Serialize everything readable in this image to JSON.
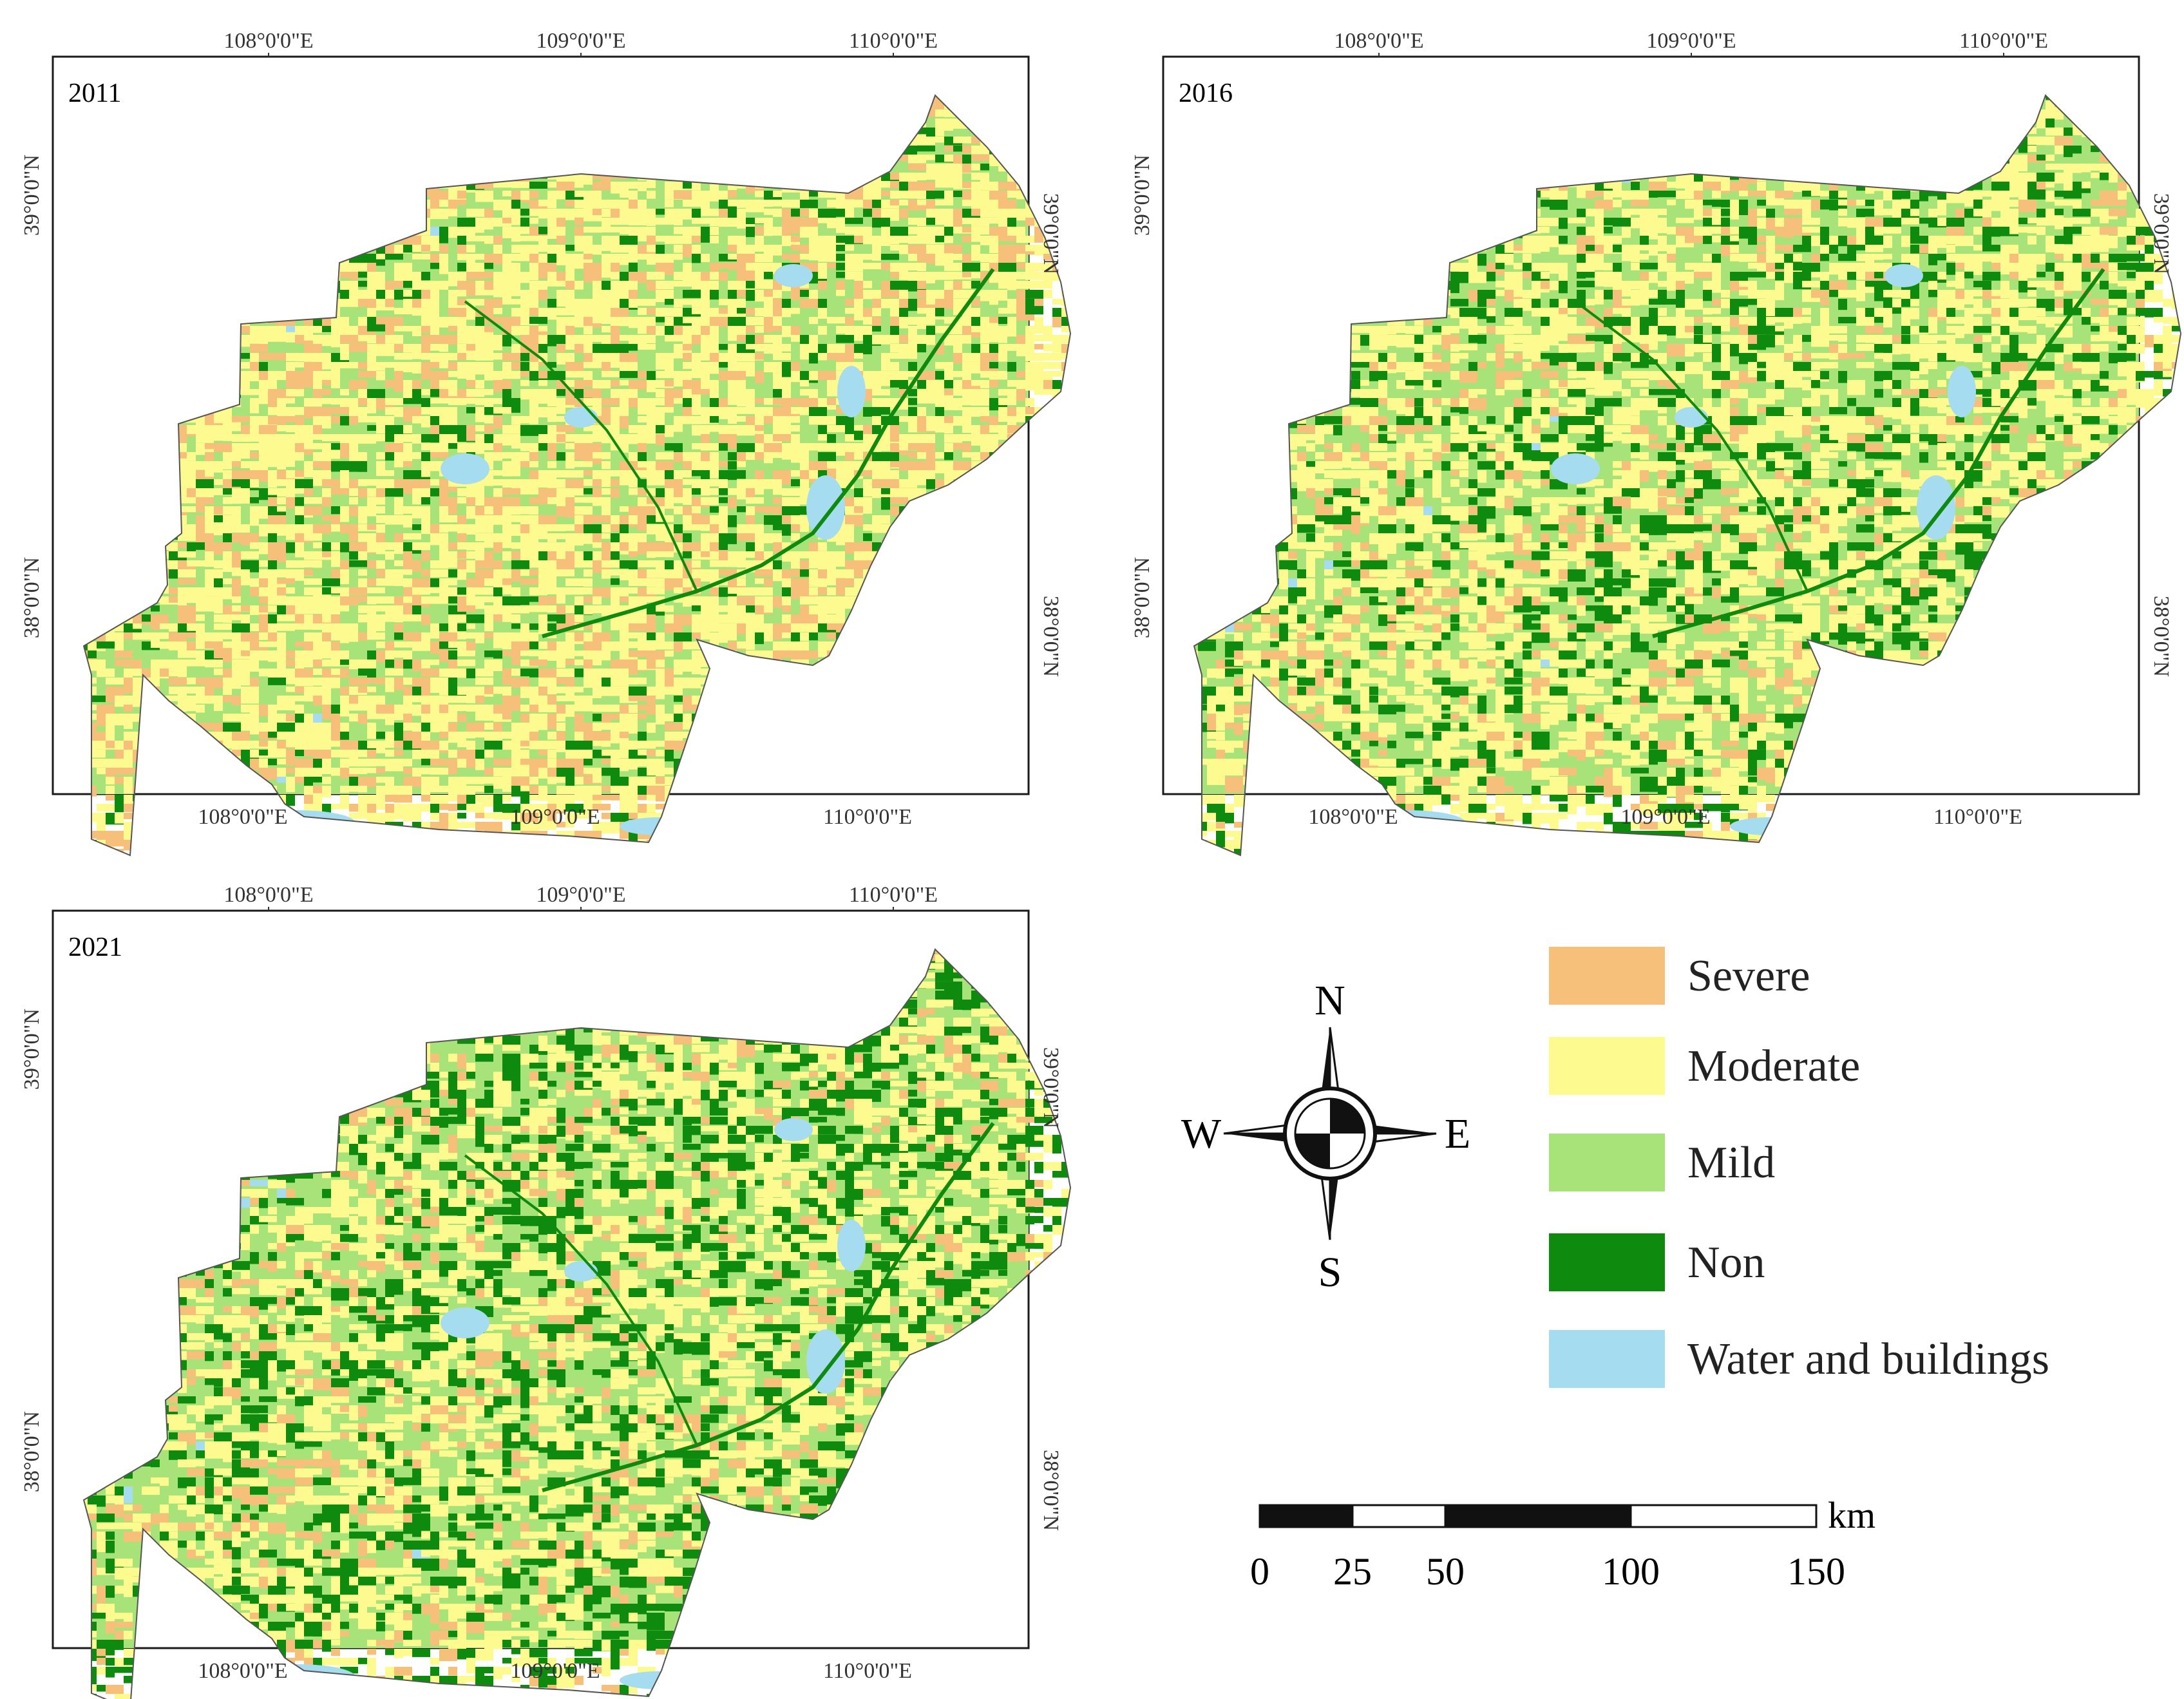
{
  "colors": {
    "severe": "#f7c07a",
    "moderate": "#fdfb8f",
    "mild": "#a8e37a",
    "non": "#0e8a0e",
    "water": "#a6dcef",
    "frame": "#1a1a1a"
  },
  "maps": [
    {
      "id": "map-2011",
      "year": "2011",
      "mix": {
        "severe": 0.16,
        "moderate": 0.44,
        "mild": 0.27,
        "non": 0.1,
        "water": 0.03
      }
    },
    {
      "id": "map-2016",
      "year": "2016",
      "mix": {
        "severe": 0.07,
        "moderate": 0.35,
        "mild": 0.37,
        "non": 0.18,
        "water": 0.03
      }
    },
    {
      "id": "map-2021",
      "year": "2021",
      "mix": {
        "severe": 0.06,
        "moderate": 0.28,
        "mild": 0.41,
        "non": 0.22,
        "water": 0.03
      }
    }
  ],
  "axes": {
    "top_lon": [
      "108°0'0\"E",
      "109°0'0\"E",
      "110°0'0\"E"
    ],
    "bottom_lon": [
      "108°0'0\"E",
      "109°0'0\"E",
      "110°0'0\"E"
    ],
    "left_lat": [
      "39°0'0\"N",
      "38°0'0\"N"
    ],
    "right_lat": [
      "39°0'0\"N",
      "38°0'0\"N"
    ]
  },
  "compass": {
    "n": "N",
    "s": "S",
    "e": "E",
    "w": "W"
  },
  "legend": [
    {
      "key": "severe",
      "label": "Severe"
    },
    {
      "key": "moderate",
      "label": "Moderate"
    },
    {
      "key": "mild",
      "label": "Mild"
    },
    {
      "key": "non",
      "label": "Non"
    },
    {
      "key": "water",
      "label": "Water and buildings"
    }
  ],
  "scalebar": {
    "unit": "km",
    "ticks": [
      "0",
      "25",
      "50",
      "100",
      "150"
    ]
  }
}
